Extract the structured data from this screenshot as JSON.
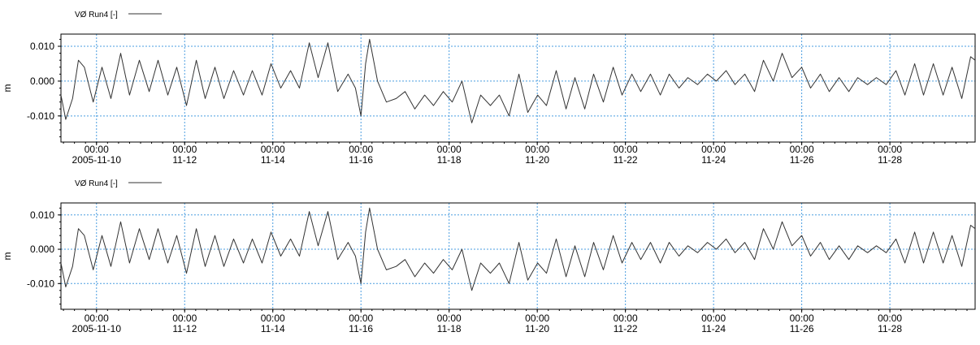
{
  "chart_data": [
    {
      "type": "line",
      "legend": "VØ Run4 [-]",
      "ylabel": "m",
      "ylim": [
        -0.0175,
        0.0135
      ],
      "yticks": [
        {
          "value": 0.01,
          "label": "0.010"
        },
        {
          "value": 0.0,
          "label": "0.000"
        },
        {
          "value": -0.01,
          "label": "-0.010"
        }
      ],
      "xlim": [
        "2005-11-09 04:38",
        "2005-11-29 22:25"
      ],
      "xticks": [
        {
          "value": "2005-11-10",
          "time": "00:00",
          "date": "2005-11-10"
        },
        {
          "value": "2005-11-12",
          "time": "00:00",
          "date": "11-12"
        },
        {
          "value": "2005-11-14",
          "time": "00:00",
          "date": "11-14"
        },
        {
          "value": "2005-11-16",
          "time": "00:00",
          "date": "11-16"
        },
        {
          "value": "2005-11-18",
          "time": "00:00",
          "date": "11-18"
        },
        {
          "value": "2005-11-20",
          "time": "00:00",
          "date": "11-20"
        },
        {
          "value": "2005-11-22",
          "time": "00:00",
          "date": "11-22"
        },
        {
          "value": "2005-11-24",
          "time": "00:00",
          "date": "11-24"
        },
        {
          "value": "2005-11-26",
          "time": "00:00",
          "date": "11-26"
        },
        {
          "value": "2005-11-28",
          "time": "00:00",
          "date": "11-28"
        }
      ],
      "grid": true,
      "line_color": "#333333",
      "grid_color": "#4a9de0",
      "series": [
        {
          "name": "VØ Run4 [-]",
          "x": [
            "2005-11-09 04:38",
            "2005-11-09 07:15",
            "2005-11-09 10:58",
            "2005-11-09 14:10",
            "2005-11-09 17:22",
            "2005-11-09 22:12",
            "2005-11-10 03:00",
            "2005-11-10 07:50",
            "2005-11-10 13:10",
            "2005-11-10 18:00",
            "2005-11-10 23:20",
            "2005-11-11 04:40",
            "2005-11-11 09:30",
            "2005-11-11 14:50",
            "2005-11-11 19:40",
            "2005-11-12 01:00",
            "2005-11-12 06:20",
            "2005-11-12 11:10",
            "2005-11-12 16:30",
            "2005-11-12 21:20",
            "2005-11-13 02:40",
            "2005-11-13 08:00",
            "2005-11-13 12:50",
            "2005-11-13 18:10",
            "2005-11-13 23:00",
            "2005-11-14 04:20",
            "2005-11-14 09:40",
            "2005-11-14 14:30",
            "2005-11-14 19:50",
            "2005-11-15 00:40",
            "2005-11-15 06:00",
            "2005-11-15 11:20",
            "2005-11-15 17:00",
            "2005-11-15 21:00",
            "2005-11-16 00:00",
            "2005-11-16 02:30",
            "2005-11-16 04:40",
            "2005-11-16 09:00",
            "2005-11-16 13:50",
            "2005-11-16 19:10",
            "2005-11-17 00:00",
            "2005-11-17 05:20",
            "2005-11-17 10:40",
            "2005-11-17 15:30",
            "2005-11-17 20:50",
            "2005-11-18 01:40",
            "2005-11-18 07:00",
            "2005-11-18 12:20",
            "2005-11-18 17:10",
            "2005-11-18 22:30",
            "2005-11-19 03:20",
            "2005-11-19 08:40",
            "2005-11-19 14:00",
            "2005-11-19 18:50",
            "2005-11-20 00:10",
            "2005-11-20 05:00",
            "2005-11-20 10:20",
            "2005-11-20 15:40",
            "2005-11-20 20:30",
            "2005-11-21 01:50",
            "2005-11-21 06:40",
            "2005-11-21 12:00",
            "2005-11-21 17:20",
            "2005-11-21 22:10",
            "2005-11-22 03:30",
            "2005-11-22 08:20",
            "2005-11-22 13:40",
            "2005-11-22 19:00",
            "2005-11-22 23:50",
            "2005-11-23 05:10",
            "2005-11-23 10:00",
            "2005-11-23 15:20",
            "2005-11-23 20:40",
            "2005-11-24 01:30",
            "2005-11-24 06:50",
            "2005-11-24 11:40",
            "2005-11-24 17:00",
            "2005-11-24 22:20",
            "2005-11-25 03:10",
            "2005-11-25 08:30",
            "2005-11-25 13:20",
            "2005-11-25 18:40",
            "2005-11-26 00:00",
            "2005-11-26 04:50",
            "2005-11-26 10:10",
            "2005-11-26 15:00",
            "2005-11-26 20:20",
            "2005-11-27 01:40",
            "2005-11-27 06:30",
            "2005-11-27 11:50",
            "2005-11-27 16:40",
            "2005-11-27 22:00",
            "2005-11-28 03:20",
            "2005-11-28 08:10",
            "2005-11-28 13:30",
            "2005-11-28 18:20",
            "2005-11-28 23:40",
            "2005-11-29 05:00",
            "2005-11-29 09:50",
            "2005-11-29 15:10",
            "2005-11-29 20:00",
            "2005-11-29 22:25"
          ],
          "y": [
            -0.004,
            -0.011,
            -0.005,
            0.006,
            0.004,
            -0.006,
            0.004,
            -0.005,
            0.008,
            -0.004,
            0.006,
            -0.003,
            0.006,
            -0.004,
            0.004,
            -0.007,
            0.006,
            -0.005,
            0.004,
            -0.005,
            0.003,
            -0.004,
            0.003,
            -0.004,
            0.005,
            -0.002,
            0.003,
            -0.002,
            0.011,
            0.001,
            0.011,
            -0.003,
            0.002,
            -0.002,
            -0.01,
            0.005,
            0.012,
            0.0,
            -0.006,
            -0.005,
            -0.003,
            -0.008,
            -0.004,
            -0.007,
            -0.003,
            -0.006,
            0.0,
            -0.012,
            -0.004,
            -0.007,
            -0.004,
            -0.01,
            0.002,
            -0.009,
            -0.004,
            -0.007,
            0.003,
            -0.008,
            0.001,
            -0.008,
            0.002,
            -0.006,
            0.004,
            -0.004,
            0.002,
            -0.003,
            0.002,
            -0.004,
            0.002,
            -0.002,
            0.001,
            -0.001,
            0.002,
            0.0,
            0.003,
            -0.001,
            0.002,
            -0.003,
            0.006,
            0.0,
            0.008,
            0.001,
            0.004,
            -0.002,
            0.002,
            -0.003,
            0.001,
            -0.003,
            0.001,
            -0.001,
            0.001,
            -0.001,
            0.003,
            -0.004,
            0.005,
            -0.004,
            0.005,
            -0.004,
            0.004,
            -0.005,
            0.007,
            0.006
          ]
        }
      ]
    },
    {
      "type": "line",
      "legend": "VØ Run4 [-]",
      "ylabel": "m",
      "ylim": [
        -0.0175,
        0.0135
      ],
      "yticks": [
        {
          "value": 0.01,
          "label": "0.010"
        },
        {
          "value": 0.0,
          "label": "0.000"
        },
        {
          "value": -0.01,
          "label": "-0.010"
        }
      ],
      "xlim": [
        "2005-11-09 04:38",
        "2005-11-29 22:25"
      ],
      "xticks": [
        {
          "value": "2005-11-10",
          "time": "00:00",
          "date": "2005-11-10"
        },
        {
          "value": "2005-11-12",
          "time": "00:00",
          "date": "11-12"
        },
        {
          "value": "2005-11-14",
          "time": "00:00",
          "date": "11-14"
        },
        {
          "value": "2005-11-16",
          "time": "00:00",
          "date": "11-16"
        },
        {
          "value": "2005-11-18",
          "time": "00:00",
          "date": "11-18"
        },
        {
          "value": "2005-11-20",
          "time": "00:00",
          "date": "11-20"
        },
        {
          "value": "2005-11-22",
          "time": "00:00",
          "date": "11-22"
        },
        {
          "value": "2005-11-24",
          "time": "00:00",
          "date": "11-24"
        },
        {
          "value": "2005-11-26",
          "time": "00:00",
          "date": "11-26"
        },
        {
          "value": "2005-11-28",
          "time": "00:00",
          "date": "11-28"
        }
      ],
      "grid": true,
      "line_color": "#333333",
      "grid_color": "#4a9de0",
      "series": [
        {
          "name": "VØ Run4 [-]",
          "x": [
            "2005-11-09 04:38",
            "2005-11-09 07:15",
            "2005-11-09 10:58",
            "2005-11-09 14:10",
            "2005-11-09 17:22",
            "2005-11-09 22:12",
            "2005-11-10 03:00",
            "2005-11-10 07:50",
            "2005-11-10 13:10",
            "2005-11-10 18:00",
            "2005-11-10 23:20",
            "2005-11-11 04:40",
            "2005-11-11 09:30",
            "2005-11-11 14:50",
            "2005-11-11 19:40",
            "2005-11-12 01:00",
            "2005-11-12 06:20",
            "2005-11-12 11:10",
            "2005-11-12 16:30",
            "2005-11-12 21:20",
            "2005-11-13 02:40",
            "2005-11-13 08:00",
            "2005-11-13 12:50",
            "2005-11-13 18:10",
            "2005-11-13 23:00",
            "2005-11-14 04:20",
            "2005-11-14 09:40",
            "2005-11-14 14:30",
            "2005-11-14 19:50",
            "2005-11-15 00:40",
            "2005-11-15 06:00",
            "2005-11-15 11:20",
            "2005-11-15 17:00",
            "2005-11-15 21:00",
            "2005-11-16 00:00",
            "2005-11-16 02:30",
            "2005-11-16 04:40",
            "2005-11-16 09:00",
            "2005-11-16 13:50",
            "2005-11-16 19:10",
            "2005-11-17 00:00",
            "2005-11-17 05:20",
            "2005-11-17 10:40",
            "2005-11-17 15:30",
            "2005-11-17 20:50",
            "2005-11-18 01:40",
            "2005-11-18 07:00",
            "2005-11-18 12:20",
            "2005-11-18 17:10",
            "2005-11-18 22:30",
            "2005-11-19 03:20",
            "2005-11-19 08:40",
            "2005-11-19 14:00",
            "2005-11-19 18:50",
            "2005-11-20 00:10",
            "2005-11-20 05:00",
            "2005-11-20 10:20",
            "2005-11-20 15:40",
            "2005-11-20 20:30",
            "2005-11-21 01:50",
            "2005-11-21 06:40",
            "2005-11-21 12:00",
            "2005-11-21 17:20",
            "2005-11-21 22:10",
            "2005-11-22 03:30",
            "2005-11-22 08:20",
            "2005-11-22 13:40",
            "2005-11-22 19:00",
            "2005-11-22 23:50",
            "2005-11-23 05:10",
            "2005-11-23 10:00",
            "2005-11-23 15:20",
            "2005-11-23 20:40",
            "2005-11-24 01:30",
            "2005-11-24 06:50",
            "2005-11-24 11:40",
            "2005-11-24 17:00",
            "2005-11-24 22:20",
            "2005-11-25 03:10",
            "2005-11-25 08:30",
            "2005-11-25 13:20",
            "2005-11-25 18:40",
            "2005-11-26 00:00",
            "2005-11-26 04:50",
            "2005-11-26 10:10",
            "2005-11-26 15:00",
            "2005-11-26 20:20",
            "2005-11-27 01:40",
            "2005-11-27 06:30",
            "2005-11-27 11:50",
            "2005-11-27 16:40",
            "2005-11-27 22:00",
            "2005-11-28 03:20",
            "2005-11-28 08:10",
            "2005-11-28 13:30",
            "2005-11-28 18:20",
            "2005-11-28 23:40",
            "2005-11-29 05:00",
            "2005-11-29 09:50",
            "2005-11-29 15:10",
            "2005-11-29 20:00",
            "2005-11-29 22:25"
          ],
          "y": [
            -0.004,
            -0.011,
            -0.005,
            0.006,
            0.004,
            -0.006,
            0.004,
            -0.005,
            0.008,
            -0.004,
            0.006,
            -0.003,
            0.006,
            -0.004,
            0.004,
            -0.007,
            0.006,
            -0.005,
            0.004,
            -0.005,
            0.003,
            -0.004,
            0.003,
            -0.004,
            0.005,
            -0.002,
            0.003,
            -0.002,
            0.011,
            0.001,
            0.011,
            -0.003,
            0.002,
            -0.002,
            -0.01,
            0.005,
            0.012,
            0.0,
            -0.006,
            -0.005,
            -0.003,
            -0.008,
            -0.004,
            -0.007,
            -0.003,
            -0.006,
            0.0,
            -0.012,
            -0.004,
            -0.007,
            -0.004,
            -0.01,
            0.002,
            -0.009,
            -0.004,
            -0.007,
            0.003,
            -0.008,
            0.001,
            -0.008,
            0.002,
            -0.006,
            0.004,
            -0.004,
            0.002,
            -0.003,
            0.002,
            -0.004,
            0.002,
            -0.002,
            0.001,
            -0.001,
            0.002,
            0.0,
            0.003,
            -0.001,
            0.002,
            -0.003,
            0.006,
            0.0,
            0.008,
            0.001,
            0.004,
            -0.002,
            0.002,
            -0.003,
            0.001,
            -0.003,
            0.001,
            -0.001,
            0.001,
            -0.001,
            0.003,
            -0.004,
            0.005,
            -0.004,
            0.005,
            -0.004,
            0.004,
            -0.005,
            0.007,
            0.006
          ]
        }
      ]
    }
  ]
}
